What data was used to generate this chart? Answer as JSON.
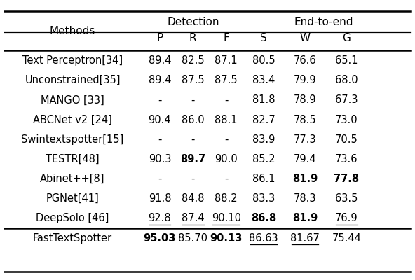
{
  "header_group1": "Detection",
  "header_group2": "End-to-end",
  "col_headers": [
    "P",
    "R",
    "F",
    "S",
    "W",
    "G"
  ],
  "rows": [
    {
      "method": "Text Perceptron[34]",
      "values": [
        "89.4",
        "82.5",
        "87.1",
        "80.5",
        "76.6",
        "65.1"
      ],
      "bold": [
        false,
        false,
        false,
        false,
        false,
        false
      ],
      "underline": [
        false,
        false,
        false,
        false,
        false,
        false
      ]
    },
    {
      "method": "Unconstrained[35]",
      "values": [
        "89.4",
        "87.5",
        "87.5",
        "83.4",
        "79.9",
        "68.0"
      ],
      "bold": [
        false,
        false,
        false,
        false,
        false,
        false
      ],
      "underline": [
        false,
        false,
        false,
        false,
        false,
        false
      ]
    },
    {
      "method": "MANGO [33]",
      "values": [
        "-",
        "-",
        "-",
        "81.8",
        "78.9",
        "67.3"
      ],
      "bold": [
        false,
        false,
        false,
        false,
        false,
        false
      ],
      "underline": [
        false,
        false,
        false,
        false,
        false,
        false
      ]
    },
    {
      "method": "ABCNet v2 [24]",
      "values": [
        "90.4",
        "86.0",
        "88.1",
        "82.7",
        "78.5",
        "73.0"
      ],
      "bold": [
        false,
        false,
        false,
        false,
        false,
        false
      ],
      "underline": [
        false,
        false,
        false,
        false,
        false,
        false
      ]
    },
    {
      "method": "Swintextspotter[15]",
      "values": [
        "-",
        "-",
        "-",
        "83.9",
        "77.3",
        "70.5"
      ],
      "bold": [
        false,
        false,
        false,
        false,
        false,
        false
      ],
      "underline": [
        false,
        false,
        false,
        false,
        false,
        false
      ]
    },
    {
      "method": "TESTR[48]",
      "values": [
        "90.3",
        "89.7",
        "90.0",
        "85.2",
        "79.4",
        "73.6"
      ],
      "bold": [
        false,
        true,
        false,
        false,
        false,
        false
      ],
      "underline": [
        false,
        false,
        false,
        false,
        false,
        false
      ]
    },
    {
      "method": "Abinet++[8]",
      "values": [
        "-",
        "-",
        "-",
        "86.1",
        "81.9",
        "77.8"
      ],
      "bold": [
        false,
        false,
        false,
        false,
        true,
        true
      ],
      "underline": [
        false,
        false,
        false,
        false,
        false,
        false
      ]
    },
    {
      "method": "PGNet[41]",
      "values": [
        "91.8",
        "84.8",
        "88.2",
        "83.3",
        "78.3",
        "63.5"
      ],
      "bold": [
        false,
        false,
        false,
        false,
        false,
        false
      ],
      "underline": [
        false,
        false,
        false,
        false,
        false,
        false
      ]
    },
    {
      "method": "DeepSolo [46]",
      "values": [
        "92.8",
        "87.4",
        "90.10",
        "86.8",
        "81.9",
        "76.9"
      ],
      "bold": [
        false,
        false,
        false,
        true,
        true,
        false
      ],
      "underline": [
        true,
        true,
        true,
        false,
        false,
        true
      ]
    },
    {
      "method": "FastTextSpotter",
      "values": [
        "95.03",
        "85.70",
        "90.13",
        "86.63",
        "81.67",
        "75.44"
      ],
      "bold": [
        true,
        false,
        true,
        false,
        false,
        false
      ],
      "underline": [
        false,
        false,
        false,
        true,
        true,
        false
      ],
      "is_last": true
    }
  ],
  "figsize": [
    5.92,
    4.0
  ],
  "dpi": 100
}
